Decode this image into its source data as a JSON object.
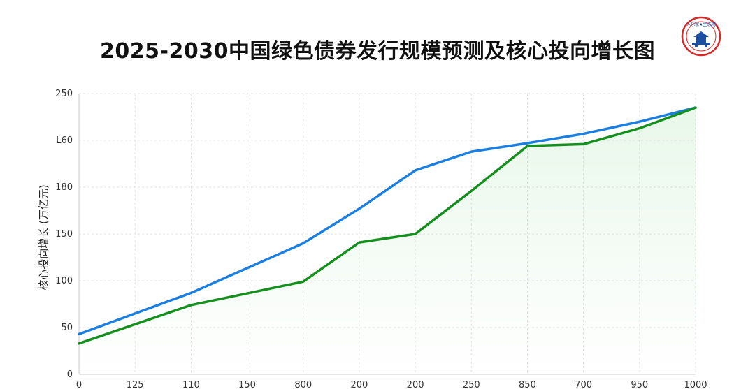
{
  "title": "2025-2030中国绿色债券发行规模预测及核心投向增长图",
  "logo": {
    "text": "人乐家★生态网"
  },
  "chart_data": {
    "type": "line",
    "title": "2025-2030中国绿色债券发行规模预测及核心投向增长图",
    "xlabel": "",
    "ylabel": "核心投向增长 (万亿元)",
    "categories": [
      "0",
      "125",
      "110",
      "150",
      "800",
      "200",
      "200",
      "250",
      "850",
      "700",
      "950",
      "1000"
    ],
    "y_tick_labels": [
      "0",
      "50",
      "100",
      "150",
      "180",
      "L60",
      "250"
    ],
    "ylim": [
      0,
      300
    ],
    "grid": true,
    "series": [
      {
        "color": "#1a7fe0",
        "values": [
          43,
          null,
          87,
          null,
          140,
          177,
          218,
          238,
          247,
          257,
          270,
          285
        ]
      },
      {
        "color": "#15901e",
        "values": [
          33,
          null,
          74,
          null,
          99,
          141,
          150,
          196,
          244,
          246,
          263,
          285
        ]
      }
    ]
  }
}
